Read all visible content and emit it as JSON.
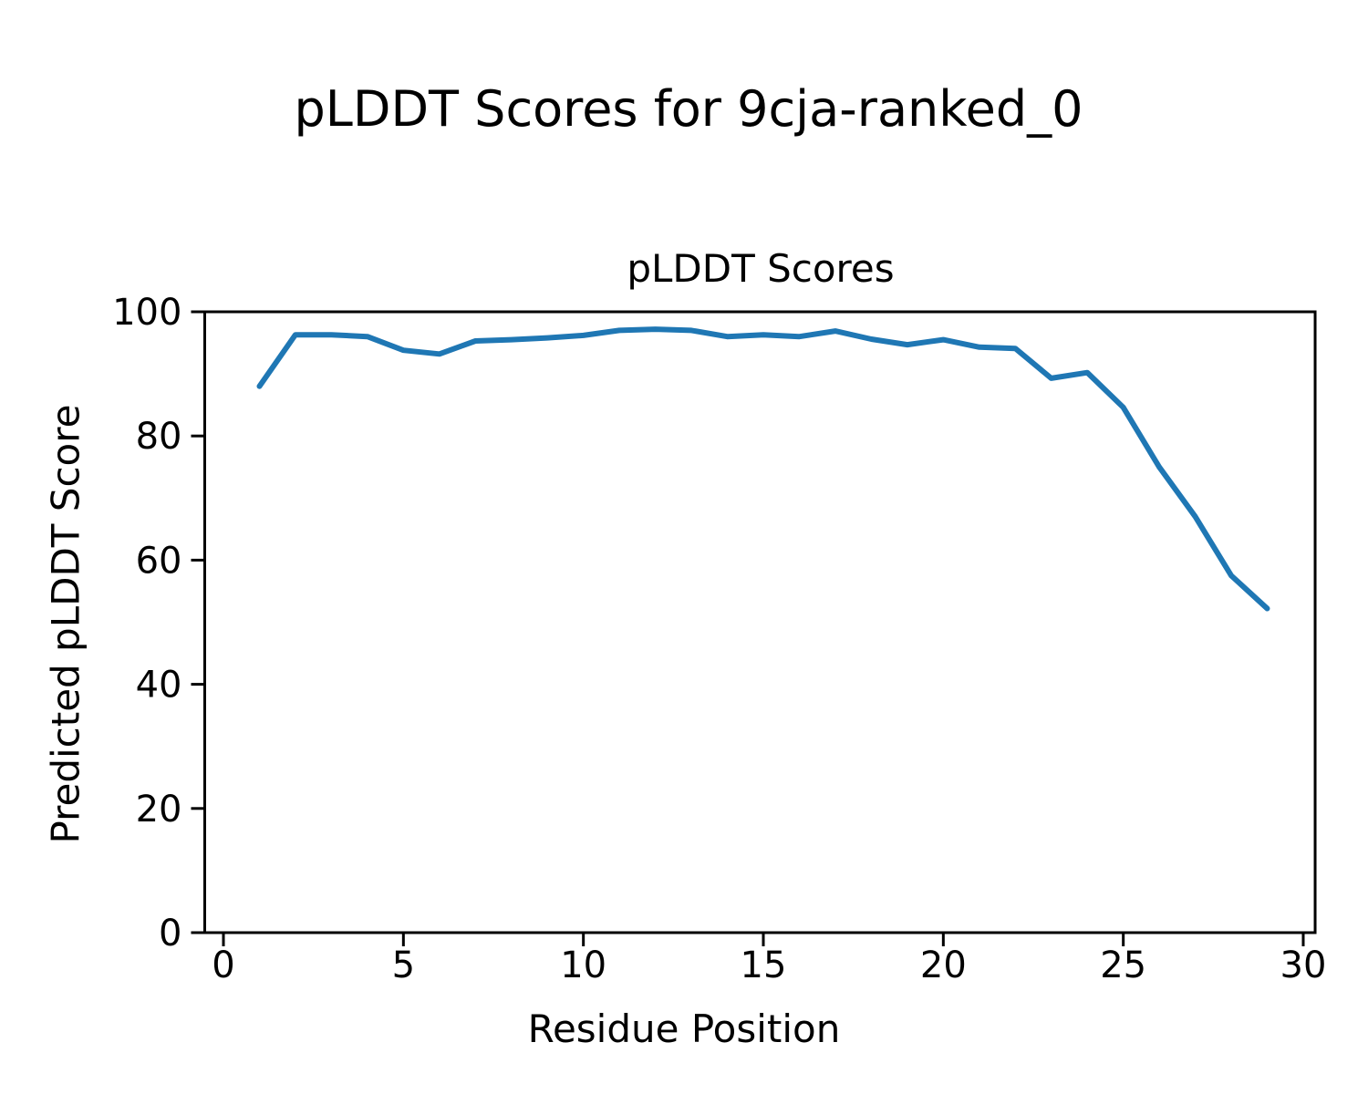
{
  "figure": {
    "title": "pLDDT Scores for 9cja-ranked_0",
    "background_color": "#ffffff"
  },
  "chart_data": {
    "type": "line",
    "title": "pLDDT Scores",
    "xlabel": "Residue Position",
    "ylabel": "Predicted pLDDT Score",
    "x": [
      1,
      2,
      3,
      4,
      5,
      6,
      7,
      8,
      9,
      10,
      11,
      12,
      13,
      14,
      15,
      16,
      17,
      18,
      19,
      20,
      21,
      22,
      23,
      24,
      25,
      26,
      27,
      28,
      29
    ],
    "series": [
      {
        "name": "pLDDT",
        "color": "#1f77b4",
        "values": [
          88.0,
          96.3,
          96.3,
          96.0,
          93.8,
          93.2,
          95.3,
          95.5,
          95.8,
          96.2,
          97.0,
          97.2,
          97.0,
          96.0,
          96.3,
          96.0,
          96.9,
          95.6,
          94.7,
          95.5,
          94.3,
          94.1,
          89.3,
          90.2,
          84.6,
          75.0,
          67.0,
          57.5,
          52.2
        ]
      }
    ],
    "x_ticks": [
      0,
      5,
      10,
      15,
      20,
      25,
      30
    ],
    "y_ticks": [
      0,
      20,
      40,
      60,
      80,
      100
    ],
    "xlim": [
      -0.52,
      30.33
    ],
    "ylim": [
      0,
      100
    ],
    "grid": false,
    "legend": "none",
    "axis_color": "#000000"
  }
}
